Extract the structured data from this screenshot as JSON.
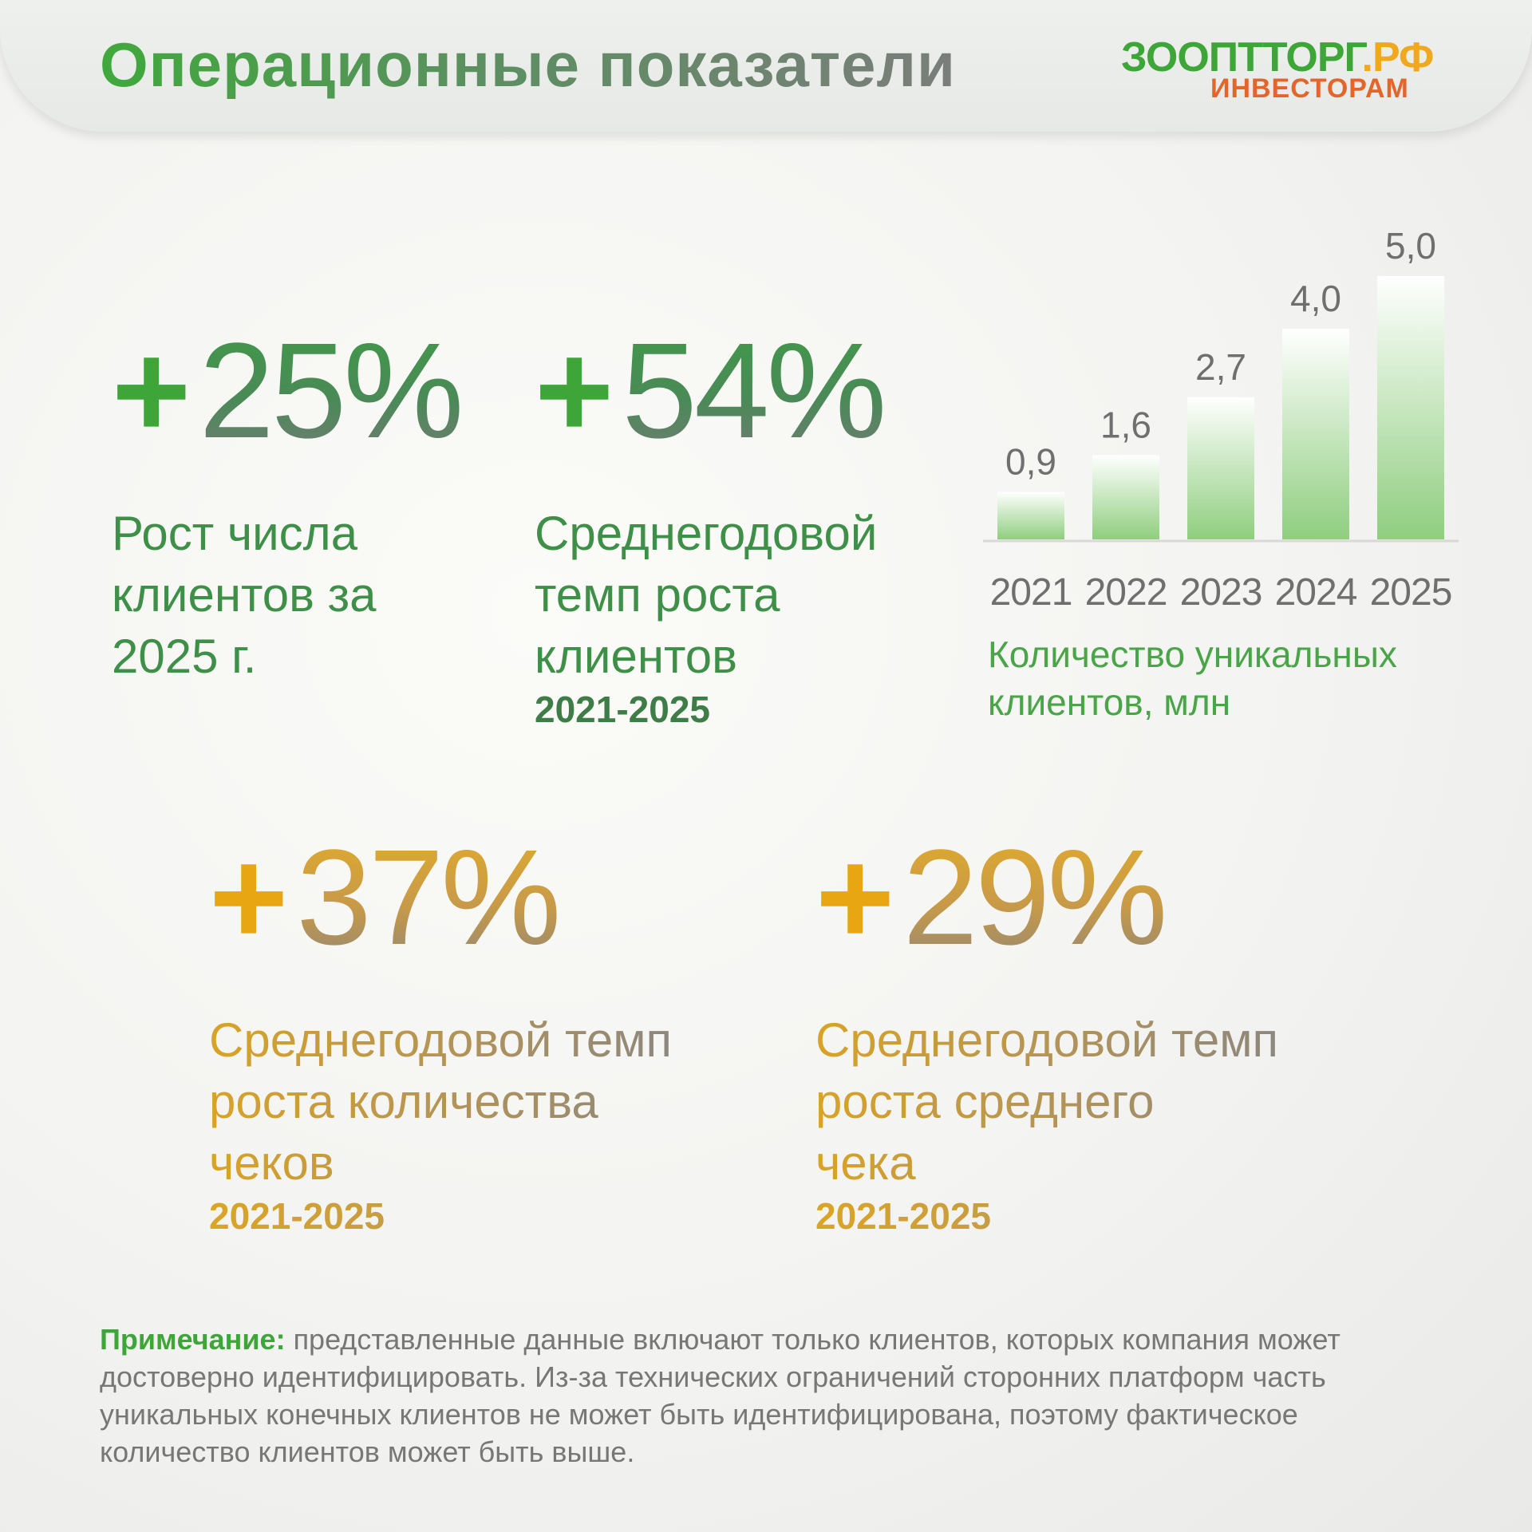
{
  "header": {
    "title": "Операционные показатели",
    "logo_main": "ЗООПТТОРГ",
    "logo_domain": ".РФ",
    "logo_sub": "ИНВЕСТОРАМ"
  },
  "stats": [
    {
      "value": "25%",
      "sign": "+",
      "desc_lines": [
        "Рост числа",
        "клиентов за",
        "2025 г."
      ],
      "years": ""
    },
    {
      "value": "54%",
      "sign": "+",
      "desc_lines": [
        "Среднегодовой",
        "темп роста",
        "клиентов"
      ],
      "years": "2021-2025"
    },
    {
      "value": "37%",
      "sign": "+",
      "desc_lines": [
        "Среднегодовой темп",
        "роста количества",
        "чеков"
      ],
      "years": "2021-2025"
    },
    {
      "value": "29%",
      "sign": "+",
      "desc_lines": [
        "Среднегодовой темп",
        "роста среднего",
        "чека"
      ],
      "years": "2021-2025"
    }
  ],
  "chart_data": {
    "type": "bar",
    "categories": [
      "2021",
      "2022",
      "2023",
      "2024",
      "2025"
    ],
    "values": [
      0.9,
      1.6,
      2.7,
      4.0,
      5.0
    ],
    "value_labels": [
      "0,9",
      "1,6",
      "2,7",
      "4,0",
      "5,0"
    ],
    "title": "",
    "caption": "Количество уникальных клиентов, млн",
    "ylim": [
      0,
      5
    ],
    "grid": false,
    "bar_color": "#8fce7f"
  },
  "note": {
    "label": "Примечание:",
    "text": " представленные данные включают только клиентов, которых компания может достоверно идентифицировать. Из-за технических ограничений сторонних платформ часть уникальных конечных клиентов не может быть идентифицирована, поэтому фактическое количество клиентов может быть выше."
  },
  "colors": {
    "green": "#3ea639",
    "gold": "#e8a612",
    "logo_orange": "#e2662a"
  }
}
